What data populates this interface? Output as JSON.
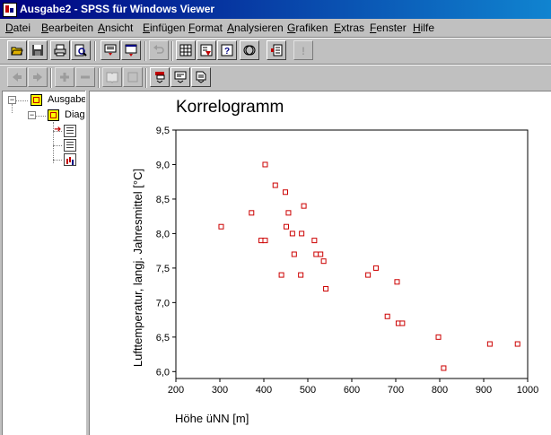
{
  "window": {
    "title": "Ausgabe2 - SPSS für Windows Viewer"
  },
  "menu": [
    "Datei",
    "Bearbeiten",
    "Ansicht",
    "Einfügen",
    "Format",
    "Analysieren",
    "Grafiken",
    "Extras",
    "Fenster",
    "Hilfe"
  ],
  "toolbar1": [
    {
      "name": "open-icon",
      "enabled": true
    },
    {
      "name": "save-icon",
      "enabled": true
    },
    {
      "name": "print-icon",
      "enabled": true
    },
    {
      "name": "print-preview-icon",
      "enabled": true
    },
    {
      "name": "export-icon",
      "enabled": true
    },
    {
      "name": "recall-dialog-icon",
      "enabled": true
    },
    {
      "name": "undo-icon",
      "enabled": false
    },
    {
      "name": "goto-data-icon",
      "enabled": true
    },
    {
      "name": "goto-case-icon",
      "enabled": true
    },
    {
      "name": "variables-icon",
      "enabled": true
    },
    {
      "name": "use-sets-icon",
      "enabled": true
    },
    {
      "name": "designate-window-icon",
      "enabled": true
    },
    {
      "name": "help-icon",
      "enabled": false
    }
  ],
  "toolbar2": [
    {
      "name": "promote-icon",
      "enabled": false
    },
    {
      "name": "demote-icon",
      "enabled": false
    },
    {
      "name": "expand-icon",
      "enabled": false
    },
    {
      "name": "collapse-icon",
      "enabled": false
    },
    {
      "name": "show-icon",
      "enabled": false
    },
    {
      "name": "hide-icon",
      "enabled": false
    },
    {
      "name": "insert-heading-icon",
      "enabled": true
    },
    {
      "name": "insert-title-icon",
      "enabled": true
    },
    {
      "name": "insert-text-icon",
      "enabled": true
    }
  ],
  "outline": {
    "root": "Ausgabe",
    "child": "Diag"
  },
  "chart_data": {
    "type": "scatter",
    "title": "Korrelogramm",
    "xlabel": "Höhe üNN [m]",
    "ylabel": "Lufttemperatur, langj. Jahresmittel [°C]",
    "xlim": [
      200,
      1000
    ],
    "ylim": [
      5.9,
      9.5
    ],
    "xticks": [
      200,
      300,
      400,
      500,
      600,
      700,
      800,
      900,
      1000
    ],
    "yticks": [
      6.0,
      6.5,
      7.0,
      7.5,
      8.0,
      8.5,
      9.0,
      9.5
    ],
    "ytick_labels": [
      "6,0",
      "6,5",
      "7,0",
      "7,5",
      "8,0",
      "8,5",
      "9,0",
      "9,5"
    ],
    "grid": false,
    "marker_color": "#cc0000",
    "points": [
      {
        "x": 303,
        "y": 8.1
      },
      {
        "x": 372,
        "y": 8.3
      },
      {
        "x": 394,
        "y": 7.9
      },
      {
        "x": 403,
        "y": 7.9
      },
      {
        "x": 403,
        "y": 9.0
      },
      {
        "x": 426,
        "y": 8.7
      },
      {
        "x": 440,
        "y": 7.4
      },
      {
        "x": 449,
        "y": 8.6
      },
      {
        "x": 451,
        "y": 8.1
      },
      {
        "x": 456,
        "y": 8.3
      },
      {
        "x": 465,
        "y": 8.0
      },
      {
        "x": 469,
        "y": 7.7
      },
      {
        "x": 484,
        "y": 7.4
      },
      {
        "x": 486,
        "y": 8.0
      },
      {
        "x": 491,
        "y": 8.4
      },
      {
        "x": 515,
        "y": 7.9
      },
      {
        "x": 519,
        "y": 7.7
      },
      {
        "x": 529,
        "y": 7.7
      },
      {
        "x": 536,
        "y": 7.6
      },
      {
        "x": 541,
        "y": 7.2
      },
      {
        "x": 637,
        "y": 7.4
      },
      {
        "x": 655,
        "y": 7.5
      },
      {
        "x": 681,
        "y": 6.8
      },
      {
        "x": 703,
        "y": 7.3
      },
      {
        "x": 706,
        "y": 6.7
      },
      {
        "x": 715,
        "y": 6.7
      },
      {
        "x": 797,
        "y": 6.5
      },
      {
        "x": 809,
        "y": 6.05
      },
      {
        "x": 914,
        "y": 6.4
      },
      {
        "x": 977,
        "y": 6.4
      }
    ]
  }
}
